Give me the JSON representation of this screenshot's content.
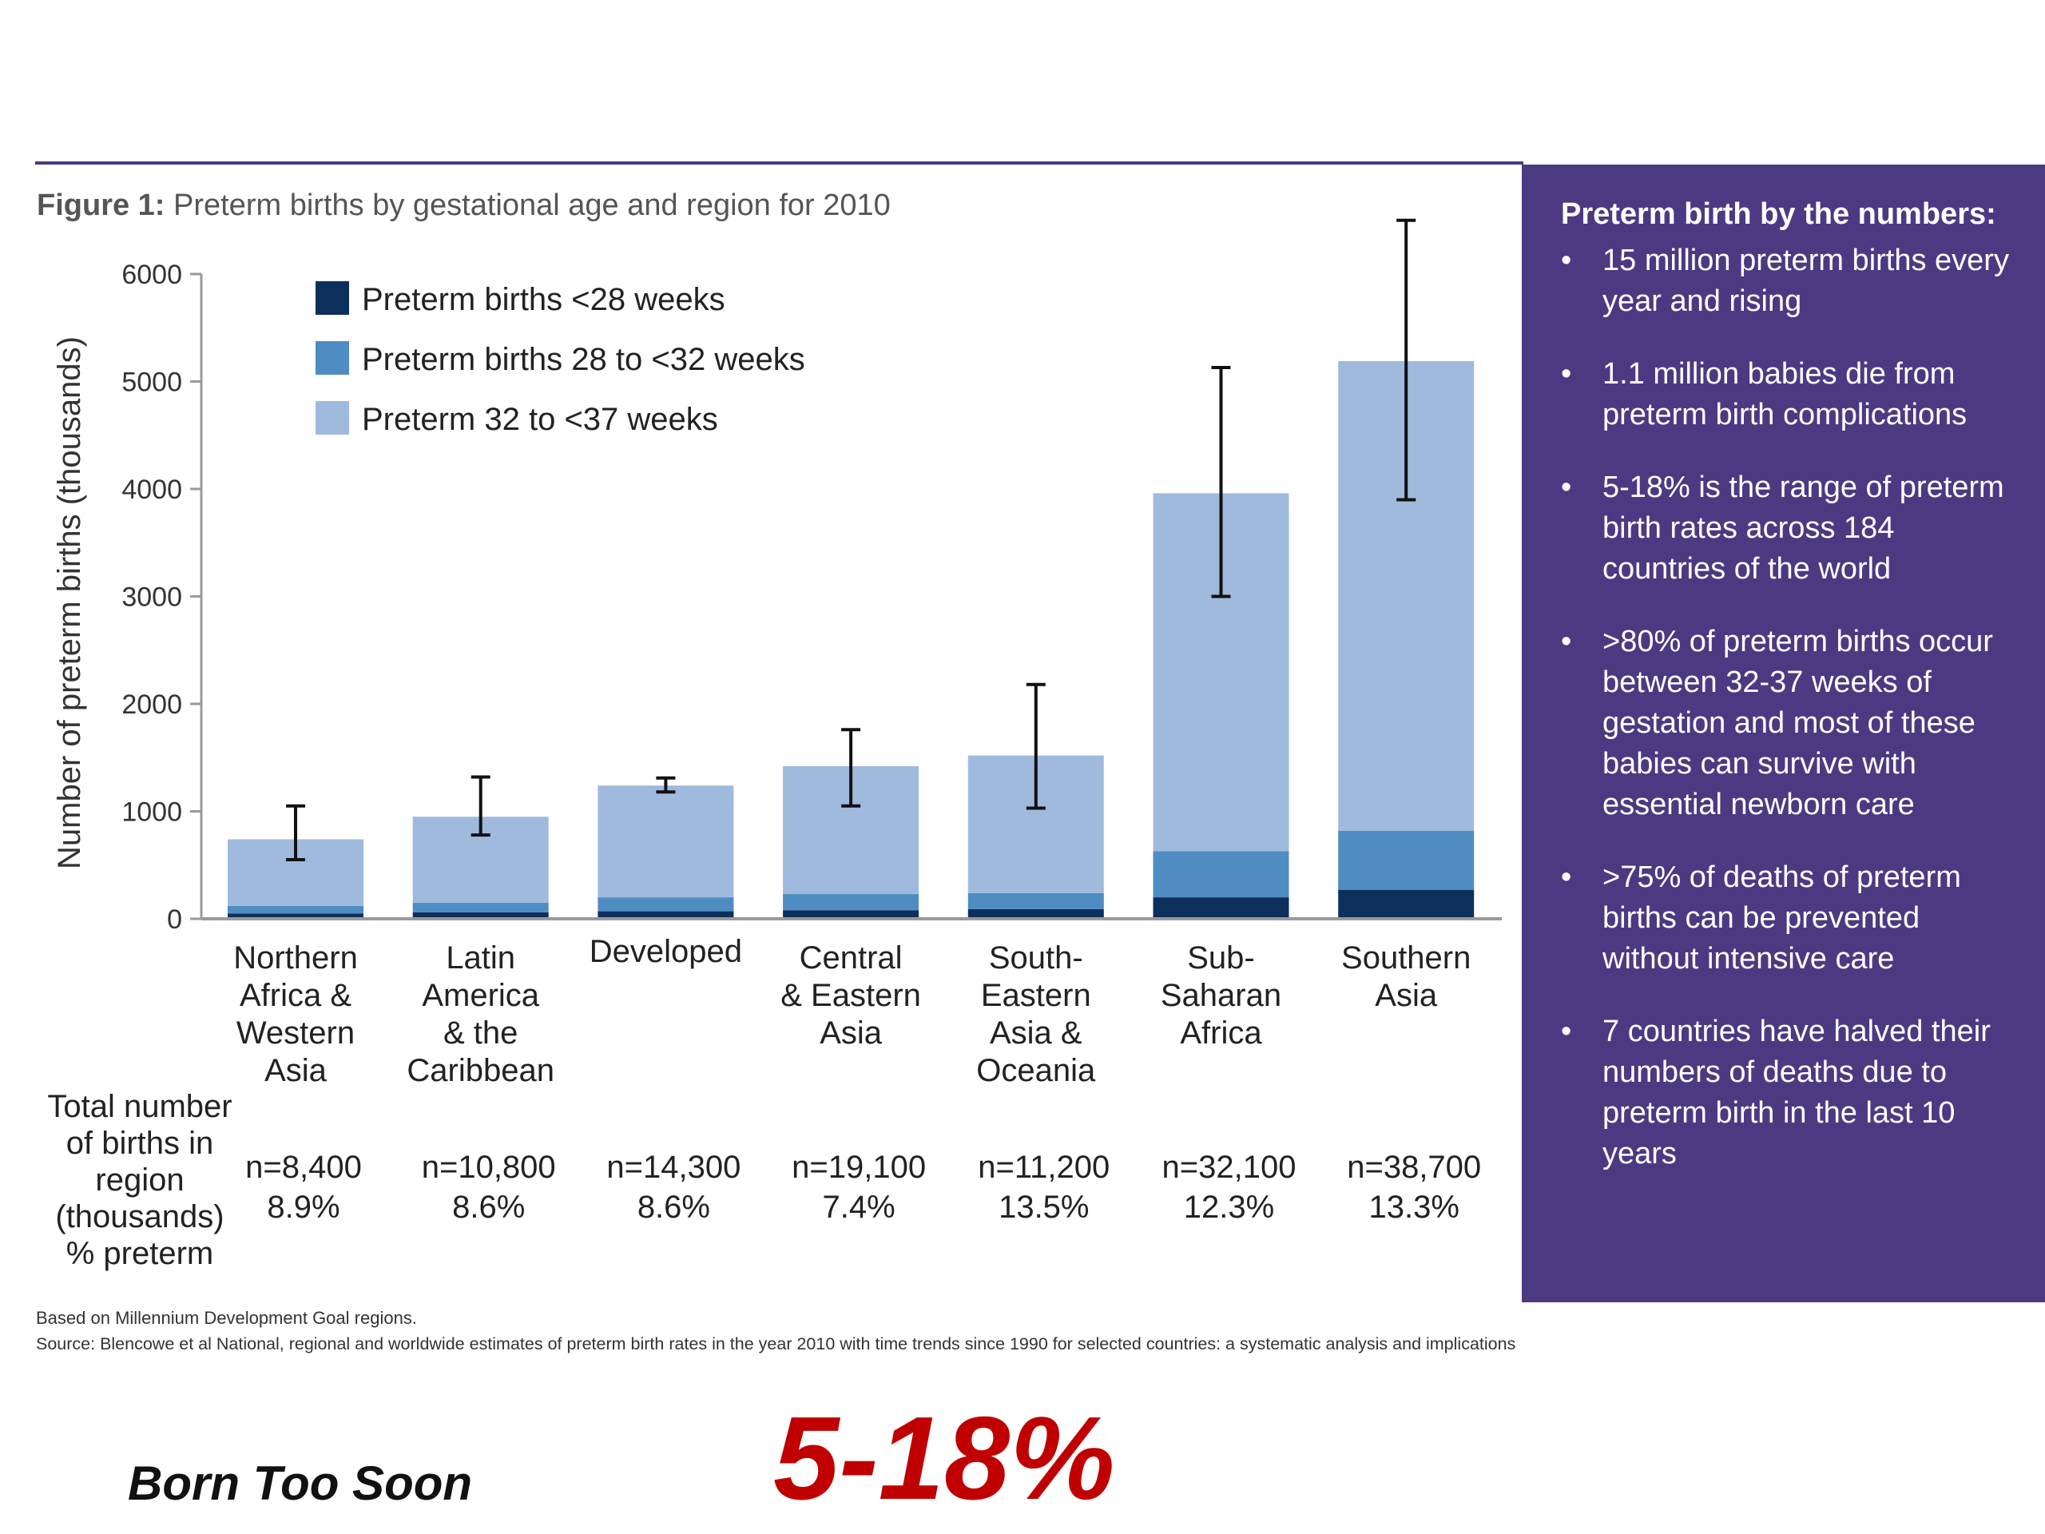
{
  "figure": {
    "label": "Figure 1:",
    "caption": "Preterm births by gestational age and region for 2010"
  },
  "chart_data": {
    "type": "bar",
    "stacked": true,
    "title": "Figure 1: Preterm births by gestational age and region for 2010",
    "ylabel": "Number of preterm births (thousands)",
    "xlabel": "",
    "ylim": [
      0,
      6000
    ],
    "yticks": [
      0,
      1000,
      2000,
      3000,
      4000,
      5000,
      6000
    ],
    "grid": false,
    "legend_position": "top-left",
    "categories": [
      [
        "Northern",
        "Africa &",
        "Western",
        "Asia"
      ],
      [
        "Latin",
        "America",
        "& the",
        "Caribbean"
      ],
      [
        "Developed"
      ],
      [
        "Central",
        "& Eastern",
        "Asia"
      ],
      [
        "South-",
        "Eastern",
        "Asia &",
        "Oceania"
      ],
      [
        "Sub-",
        "Saharan",
        "Africa"
      ],
      [
        "Southern",
        "Asia"
      ]
    ],
    "series": [
      {
        "name": "Preterm births <28 weeks",
        "color": "#0d2f5c",
        "values": [
          50,
          60,
          70,
          80,
          90,
          200,
          270
        ]
      },
      {
        "name": "Preterm births 28 to <32 weeks",
        "color": "#4f8cc1",
        "values": [
          70,
          90,
          130,
          150,
          150,
          430,
          550
        ]
      },
      {
        "name": "Preterm 32 to <37 weeks",
        "color": "#9fbadd",
        "values": [
          620,
          800,
          1040,
          1190,
          1280,
          3330,
          4370
        ]
      }
    ],
    "error_bars": [
      {
        "low": 550,
        "high": 1050
      },
      {
        "low": 780,
        "high": 1320
      },
      {
        "low": 1180,
        "high": 1310
      },
      {
        "low": 1050,
        "high": 1760
      },
      {
        "low": 1030,
        "high": 2180
      },
      {
        "low": 3000,
        "high": 5130
      },
      {
        "low": 3900,
        "high": 6500
      }
    ],
    "row_label": [
      "Total number",
      "of births in",
      "region",
      "(thousands)",
      "% preterm"
    ],
    "births_total": [
      "n=8,400",
      "n=10,800",
      "n=14,300",
      "n=19,100",
      "n=11,200",
      "n=32,100",
      "n=38,700"
    ],
    "percent_preterm": [
      "8.9%",
      "8.6%",
      "8.6%",
      "7.4%",
      "13.5%",
      "12.3%",
      "13.3%"
    ]
  },
  "side_panel": {
    "title": "Preterm birth by the numbers:",
    "facts": [
      "15 million preterm births every year and rising",
      "1.1 million babies die from preterm birth complications",
      "5-18% is the range of preterm birth rates across 184 countries of the world",
      ">80% of preterm births occur between 32-37 weeks of gestation and most of these babies can survive with essential newborn care",
      ">75% of deaths of preterm births can be prevented without intensive care",
      "7 countries have halved their numbers of deaths due to preterm birth in the last 10 years"
    ],
    "color": "#4b3a82"
  },
  "notes": {
    "regions": "Based on Millennium Development Goal regions.",
    "source": "Source: Blencowe et al National, regional and worldwide estimates of preterm birth rates in the year 2010 with time trends since 1990 for selected countries: a systematic analysis and implications"
  },
  "footer": {
    "slogan": "Born Too Soon",
    "stat": "5-18%",
    "stat_color": "#c00000"
  }
}
